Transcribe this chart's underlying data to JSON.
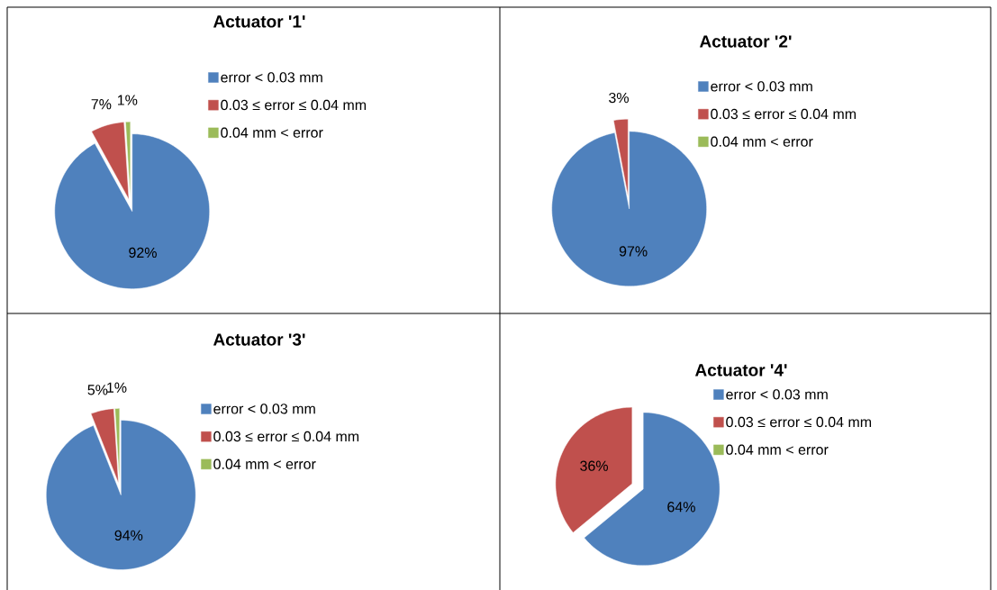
{
  "chart_data": [
    {
      "type": "pie",
      "title": "Actuator '1'",
      "categories": [
        "error < 0.03 mm",
        "0.03 ≤ error ≤  0.04 mm",
        "0.04 mm < error"
      ],
      "values": [
        92,
        7,
        1
      ],
      "value_labels": [
        "92%",
        "7%",
        "1%"
      ],
      "colors": [
        "#4f81bd",
        "#c0504d",
        "#9bbb59"
      ],
      "legend": "right"
    },
    {
      "type": "pie",
      "title": "Actuator '2'",
      "categories": [
        "error < 0.03 mm",
        "0.03 ≤ error ≤  0.04 mm",
        "0.04 mm < error"
      ],
      "values": [
        97,
        3,
        0
      ],
      "value_labels": [
        "97%",
        "3%",
        null
      ],
      "colors": [
        "#4f81bd",
        "#c0504d",
        "#9bbb59"
      ],
      "legend": "right"
    },
    {
      "type": "pie",
      "title": "Actuator '3'",
      "categories": [
        "error < 0.03 mm",
        "0.03 ≤ error ≤  0.04 mm",
        "0.04 mm < error"
      ],
      "values": [
        94,
        5,
        1
      ],
      "value_labels": [
        "94%",
        "5%",
        "1%"
      ],
      "colors": [
        "#4f81bd",
        "#c0504d",
        "#9bbb59"
      ],
      "legend": "right"
    },
    {
      "type": "pie",
      "title": "Actuator '4'",
      "categories": [
        "error < 0.03 mm",
        "0.03 ≤ error ≤  0.04 mm",
        "0.04 mm < error"
      ],
      "values": [
        64,
        36,
        0
      ],
      "value_labels": [
        "64%",
        "36%",
        null
      ],
      "colors": [
        "#4f81bd",
        "#c0504d",
        "#9bbb59"
      ],
      "legend": "right"
    }
  ]
}
